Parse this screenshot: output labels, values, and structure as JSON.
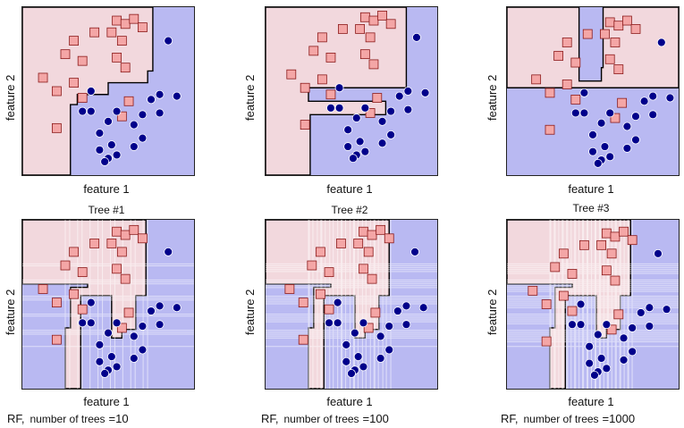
{
  "chart_data": [
    {
      "type": "scatter",
      "title": "",
      "xlabel": "feature 1",
      "ylabel": "feature 2",
      "colors": {
        "class_square_region": "#f2d8dd",
        "class_circle_region": "#b9b9f2",
        "square": "#f4a6a6",
        "circle": "#00008b"
      },
      "squares": [
        [
          0.55,
          0.92
        ],
        [
          0.52,
          0.85
        ],
        [
          0.6,
          0.9
        ],
        [
          0.65,
          0.93
        ],
        [
          0.7,
          0.88
        ],
        [
          0.58,
          0.8
        ],
        [
          0.42,
          0.85
        ],
        [
          0.3,
          0.8
        ],
        [
          0.25,
          0.72
        ],
        [
          0.35,
          0.68
        ],
        [
          0.55,
          0.7
        ],
        [
          0.6,
          0.64
        ],
        [
          0.12,
          0.58
        ],
        [
          0.2,
          0.5
        ],
        [
          0.3,
          0.55
        ],
        [
          0.35,
          0.46
        ],
        [
          0.62,
          0.44
        ],
        [
          0.58,
          0.35
        ],
        [
          0.2,
          0.28
        ]
      ],
      "circles": [
        [
          0.85,
          0.8
        ],
        [
          0.4,
          0.5
        ],
        [
          0.8,
          0.48
        ],
        [
          0.9,
          0.47
        ],
        [
          0.75,
          0.45
        ],
        [
          0.35,
          0.38
        ],
        [
          0.4,
          0.38
        ],
        [
          0.55,
          0.38
        ],
        [
          0.7,
          0.36
        ],
        [
          0.8,
          0.37
        ],
        [
          0.5,
          0.32
        ],
        [
          0.65,
          0.3
        ],
        [
          0.45,
          0.25
        ],
        [
          0.7,
          0.22
        ],
        [
          0.52,
          0.18
        ],
        [
          0.65,
          0.17
        ],
        [
          0.45,
          0.15
        ],
        [
          0.55,
          0.12
        ],
        [
          0.5,
          0.1
        ],
        [
          0.48,
          0.08
        ]
      ]
    },
    {
      "type": "scatter",
      "title": "",
      "xlabel": "feature 1",
      "ylabel": "feature 2"
    },
    {
      "type": "scatter",
      "title": "",
      "xlabel": "feature 1",
      "ylabel": "feature 2"
    },
    {
      "type": "scatter",
      "title": "Tree #1",
      "xlabel": "feature 1",
      "ylabel": "feature 2",
      "caption": {
        "prefix": "RF,",
        "label": "number of trees",
        "value": "=10"
      }
    },
    {
      "type": "scatter",
      "title": "Tree #2",
      "xlabel": "feature 1",
      "ylabel": "feature 2",
      "caption": {
        "prefix": "RF,",
        "label": "number of trees",
        "value": "=100"
      }
    },
    {
      "type": "scatter",
      "title": "Tree #3",
      "xlabel": "feature 1",
      "ylabel": "feature 2",
      "caption": {
        "prefix": "RF,",
        "label": "number of trees",
        "value": "=1000"
      }
    }
  ]
}
